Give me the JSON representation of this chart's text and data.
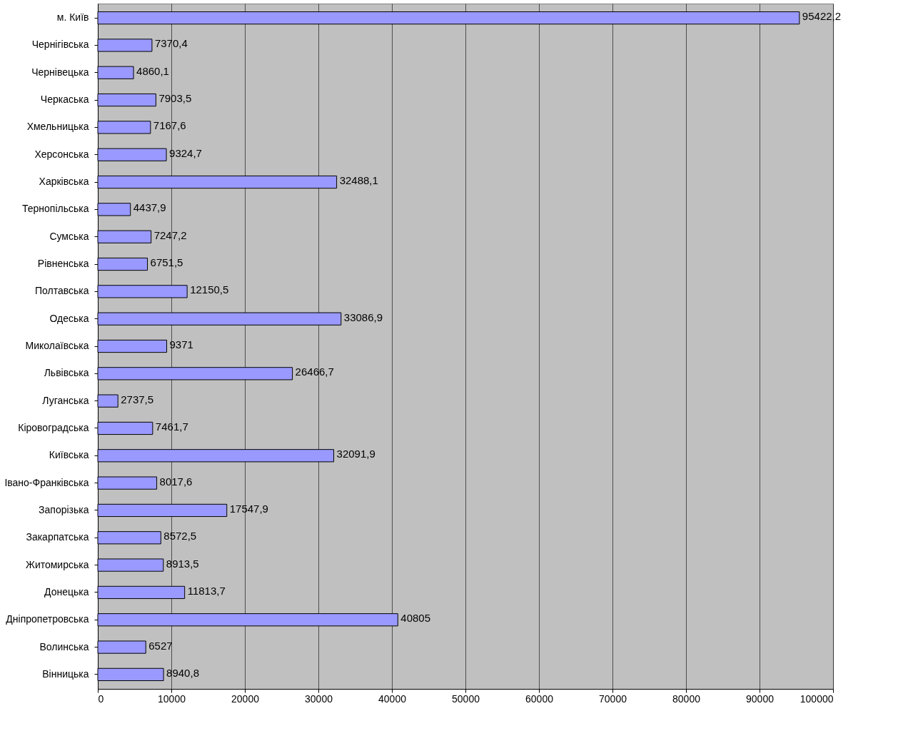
{
  "chart_data": {
    "type": "bar",
    "orientation": "horizontal",
    "categories": [
      "м. Київ",
      "Чернігівська",
      "Чернівецька",
      "Черкаська",
      "Хмельницька",
      "Херсонська",
      "Харківська",
      "Тернопільська",
      "Сумська",
      "Рівненська",
      "Полтавська",
      "Одеська",
      "Миколаївська",
      "Львівська",
      "Луганська",
      "Кіровоградська",
      "Київська",
      "Івано-Франківська",
      "Запорізька",
      "Закарпатська",
      "Житомирська",
      "Донецька",
      "Дніпропетровська",
      "Волинська",
      "Вінницька"
    ],
    "values": [
      95422.2,
      7370.4,
      4860.1,
      7903.5,
      7167.6,
      9324.7,
      32488.1,
      4437.9,
      7247.2,
      6751.5,
      12150.5,
      33086.9,
      9371,
      26466.7,
      2737.5,
      7461.7,
      32091.9,
      8017.6,
      17547.9,
      8572.5,
      8913.5,
      11813.7,
      40805,
      6527,
      8940.8
    ],
    "value_labels": [
      "95422,2",
      "7370,4",
      "4860,1",
      "7903,5",
      "7167,6",
      "9324,7",
      "32488,1",
      "4437,9",
      "7247,2",
      "6751,5",
      "12150,5",
      "33086,9",
      "9371",
      "26466,7",
      "2737,5",
      "7461,7",
      "32091,9",
      "8017,6",
      "17547,9",
      "8572,5",
      "8913,5",
      "11813,7",
      "40805",
      "6527",
      "8940,8"
    ],
    "color": "#9999ff",
    "xlim": [
      0,
      100000
    ],
    "xticks": [
      0,
      10000,
      20000,
      30000,
      40000,
      50000,
      60000,
      70000,
      80000,
      90000,
      100000
    ],
    "grid": "x"
  }
}
